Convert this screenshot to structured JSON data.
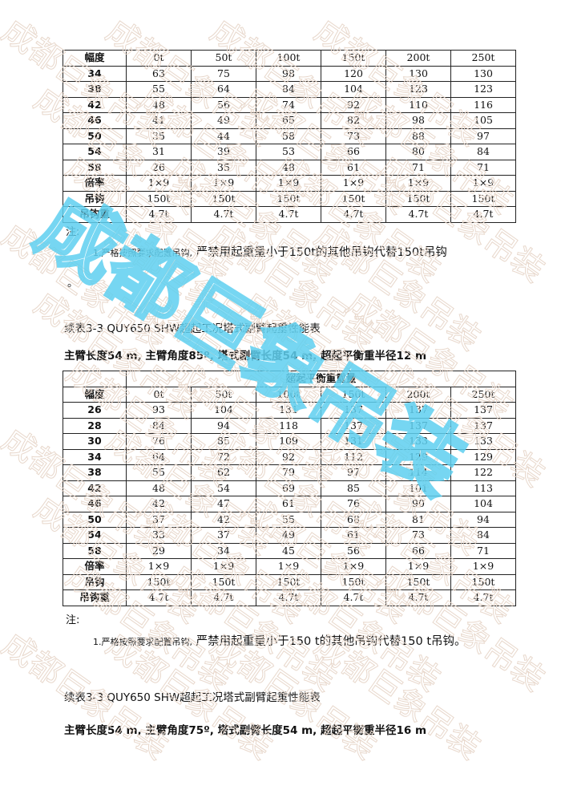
{
  "watermark": {
    "text": "成都巨象吊装",
    "pattern_color": "#e8d8cc",
    "overlay_color": "#5fd0f0"
  },
  "table1": {
    "header": [
      "幅度",
      "0t",
      "50t",
      "100t",
      "150t",
      "200t",
      "250t"
    ],
    "rows": [
      [
        "34",
        "63",
        "75",
        "98",
        "120",
        "130",
        "130"
      ],
      [
        "38",
        "55",
        "64",
        "84",
        "104",
        "123",
        "123"
      ],
      [
        "42",
        "48",
        "56",
        "74",
        "92",
        "110",
        "116"
      ],
      [
        "46",
        "41",
        "49",
        "65",
        "82",
        "98",
        "105"
      ],
      [
        "50",
        "35",
        "44",
        "58",
        "73",
        "88",
        "97"
      ],
      [
        "54",
        "31",
        "39",
        "53",
        "66",
        "80",
        "84"
      ],
      [
        "58",
        "26",
        "35",
        "48",
        "61",
        "71",
        "71"
      ],
      [
        "倍率",
        "1×9",
        "1×9",
        "1×9",
        "1×9",
        "1×9",
        "1×9"
      ],
      [
        "吊钩",
        "150t",
        "150t",
        "150t",
        "150t",
        "150t",
        "150t"
      ],
      [
        "吊钩重",
        "4.7t",
        "4.7t",
        "4.7t",
        "4.7t",
        "4.7t",
        "4.7t"
      ]
    ]
  },
  "note1": {
    "label": "注:",
    "prefix": "1.严格按照要求配置吊钩,",
    "text": "严禁用起重量小于150t的其他吊钩代替150t吊钩",
    "tail": "。"
  },
  "section2": {
    "caption": "续表3-3 QUY650 SHW超起工况塔式副臂起重性能表",
    "subtitle": "主臂长度54 m, 主臂角度85º, 塔式副臂长度54 m, 超起平衡重半径12 m"
  },
  "table2": {
    "group_header": "超起平衡重重量",
    "header": [
      "幅度",
      "0t",
      "50t",
      "100t",
      "150t",
      "200t",
      "250t"
    ],
    "rows": [
      [
        "26",
        "93",
        "104",
        "131",
        "137",
        "137",
        "137"
      ],
      [
        "28",
        "84",
        "94",
        "118",
        "137",
        "137",
        "137"
      ],
      [
        "30",
        "76",
        "85",
        "109",
        "131",
        "133",
        "133"
      ],
      [
        "34",
        "64",
        "72",
        "92",
        "112",
        "129",
        "129"
      ],
      [
        "38",
        "55",
        "62",
        "79",
        "97",
        "114",
        "122"
      ],
      [
        "42",
        "48",
        "54",
        "69",
        "85",
        "101",
        "113"
      ],
      [
        "46",
        "42",
        "47",
        "61",
        "76",
        "90",
        "104"
      ],
      [
        "50",
        "37",
        "42",
        "55",
        "68",
        "81",
        "94"
      ],
      [
        "54",
        "33",
        "37",
        "49",
        "61",
        "73",
        "84"
      ],
      [
        "58",
        "29",
        "34",
        "45",
        "56",
        "66",
        "71"
      ],
      [
        "倍率",
        "1×9",
        "1×9",
        "1×9",
        "1×9",
        "1×9",
        "1×9"
      ],
      [
        "吊钩",
        "150t",
        "150t",
        "150t",
        "150t",
        "150t",
        "150t"
      ],
      [
        "吊钩重",
        "4.7t",
        "4.7t",
        "4.7t",
        "4.7t",
        "4.7t",
        "4.7t"
      ]
    ]
  },
  "note2": {
    "label": "注:",
    "prefix": "1.严格按照要求配置吊钩,",
    "text": "严禁用起重量小于150 t的其他吊钩代替150 t吊钩。"
  },
  "section3": {
    "caption": "续表3-3 QUY650 SHW超起工况塔式副臂起重性能表",
    "subtitle": "主臂长度54 m, 主臂角度75º, 塔式副臂长度54 m, 超起平衡重半径16 m"
  }
}
